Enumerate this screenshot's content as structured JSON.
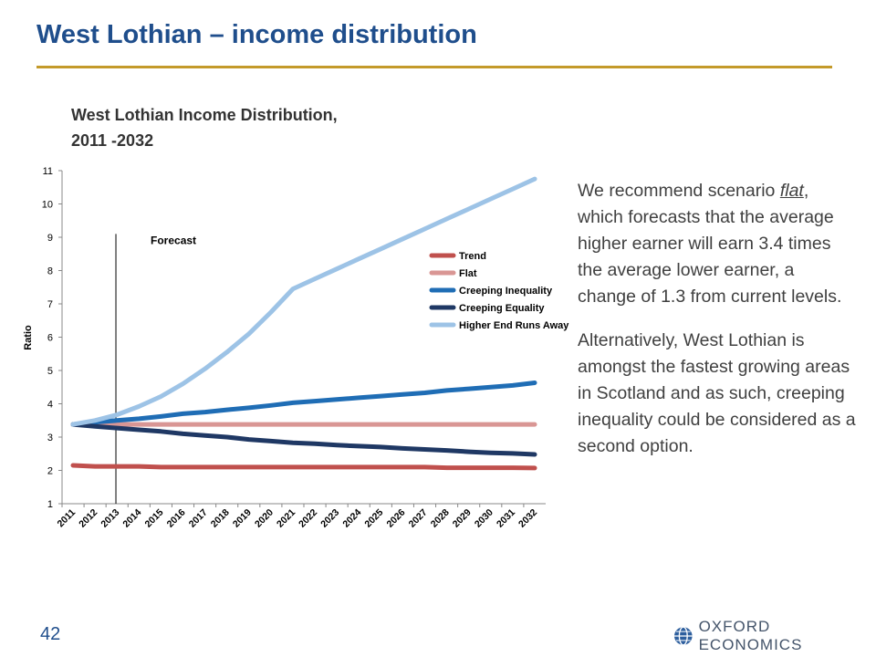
{
  "slide": {
    "title": "West  Lothian – income distribution",
    "page_number": "42",
    "brand": "OXFORD ECONOMICS",
    "brand_icon": "globe-icon",
    "accent_color": "#c49a2a",
    "title_color": "#1f4e8c"
  },
  "commentary": {
    "p1_before": "We recommend scenario ",
    "p1_em": "flat",
    "p1_after": ", which forecasts that the average higher earner will earn 3.4 times the average lower earner, a change of 1.3 from current levels.",
    "p2": "Alternatively, West Lothian is amongst the fastest growing areas in Scotland and as such, creeping inequality could be considered as a second option."
  },
  "chart_data": {
    "type": "line",
    "title": "West Lothian Income Distribution, 2011 -2032",
    "xlabel": "",
    "ylabel": "Ratio",
    "ylim": [
      1,
      11
    ],
    "yticks": [
      1,
      2,
      3,
      4,
      5,
      6,
      7,
      8,
      9,
      10,
      11
    ],
    "grid": false,
    "legend_position": "center-right",
    "annotation": {
      "text": "Forecast",
      "at_x": "2013"
    },
    "x": [
      "2011",
      "2012",
      "2013",
      "2014",
      "2015",
      "2016",
      "2017",
      "2018",
      "2019",
      "2020",
      "2021",
      "2022",
      "2023",
      "2024",
      "2025",
      "2026",
      "2027",
      "2028",
      "2029",
      "2030",
      "2031",
      "2032"
    ],
    "series": [
      {
        "name": "Trend",
        "color": "#c0504d",
        "values": [
          2.15,
          2.12,
          2.12,
          2.12,
          2.1,
          2.1,
          2.1,
          2.1,
          2.1,
          2.1,
          2.1,
          2.1,
          2.1,
          2.1,
          2.1,
          2.1,
          2.1,
          2.08,
          2.08,
          2.08,
          2.08,
          2.07
        ]
      },
      {
        "name": "Flat",
        "color": "#d99694",
        "values": [
          3.38,
          3.38,
          3.38,
          3.38,
          3.38,
          3.38,
          3.38,
          3.38,
          3.38,
          3.38,
          3.38,
          3.38,
          3.38,
          3.38,
          3.38,
          3.38,
          3.38,
          3.38,
          3.38,
          3.38,
          3.38,
          3.38
        ]
      },
      {
        "name": "Creeping Inequality",
        "color": "#1f6db5",
        "values": [
          3.38,
          3.45,
          3.5,
          3.55,
          3.62,
          3.7,
          3.75,
          3.82,
          3.88,
          3.95,
          4.03,
          4.08,
          4.13,
          4.18,
          4.23,
          4.28,
          4.33,
          4.4,
          4.45,
          4.5,
          4.55,
          4.63
        ]
      },
      {
        "name": "Creeping Equality",
        "color": "#1f3864",
        "values": [
          3.38,
          3.32,
          3.27,
          3.22,
          3.17,
          3.1,
          3.05,
          3.0,
          2.93,
          2.88,
          2.83,
          2.8,
          2.76,
          2.73,
          2.7,
          2.66,
          2.63,
          2.6,
          2.56,
          2.53,
          2.51,
          2.48
        ]
      },
      {
        "name": "Higher End Runs Away",
        "color": "#9dc3e6",
        "values": [
          3.38,
          3.5,
          3.67,
          3.92,
          4.22,
          4.6,
          5.05,
          5.55,
          6.1,
          6.75,
          7.45,
          7.75,
          8.05,
          8.35,
          8.65,
          8.95,
          9.25,
          9.55,
          9.85,
          10.15,
          10.45,
          10.75
        ]
      }
    ]
  }
}
